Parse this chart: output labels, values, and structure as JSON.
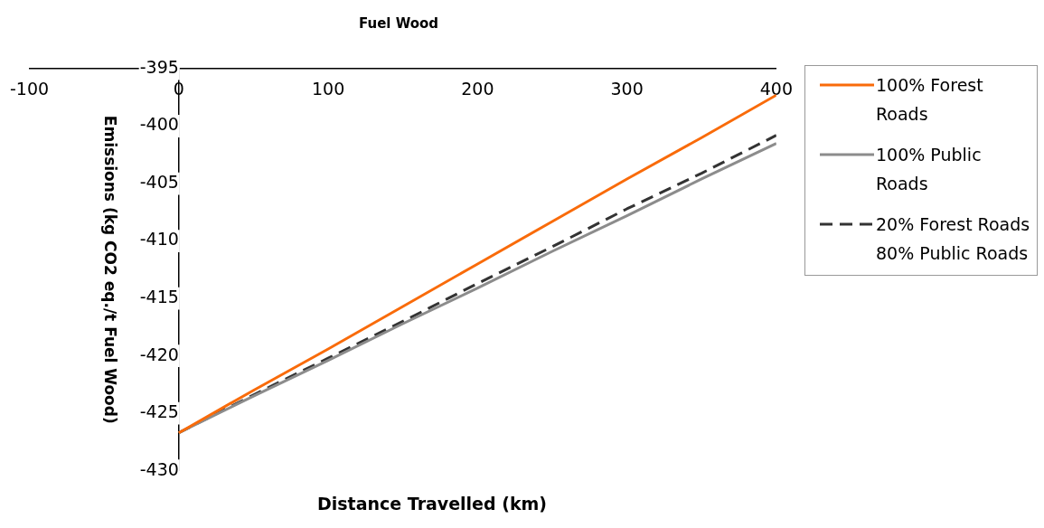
{
  "chart_data": {
    "type": "line",
    "title": "Fuel Wood",
    "xlabel": "Distance Travelled (km)",
    "ylabel": "Emissions (kg CO2 eq./t Fuel Wood)",
    "x": [
      0,
      50,
      100,
      150,
      200,
      250,
      300,
      350,
      400
    ],
    "series": [
      {
        "name": "100% Forest Roads",
        "color": "#f96b0a",
        "values": [
          -426.7,
          -423.0,
          -419.4,
          -415.7,
          -412.0,
          -408.3,
          -404.6,
          -401.0,
          -397.3
        ],
        "line_style": "solid"
      },
      {
        "name": "100% Public Roads",
        "color": "#8c8c8c",
        "values": [
          -426.7,
          -423.5,
          -420.4,
          -417.2,
          -414.1,
          -410.9,
          -407.8,
          -404.6,
          -401.5
        ],
        "line_style": "solid"
      },
      {
        "name": "20% Forest Roads 80% Public Roads",
        "color": "#333333",
        "values": [
          -426.7,
          -423.4,
          -420.2,
          -417.0,
          -413.7,
          -410.5,
          -407.2,
          -404.1,
          -400.8
        ],
        "line_style": "dashed"
      }
    ],
    "xlim": [
      -100,
      400
    ],
    "xticks": [
      -100,
      0,
      100,
      200,
      300,
      400
    ],
    "ylim": [
      -430,
      -395
    ],
    "yticks": [
      -430,
      -425,
      -420,
      -415,
      -410,
      -405,
      -400,
      -395
    ],
    "grid": false,
    "legend": "right",
    "marker": "none"
  }
}
